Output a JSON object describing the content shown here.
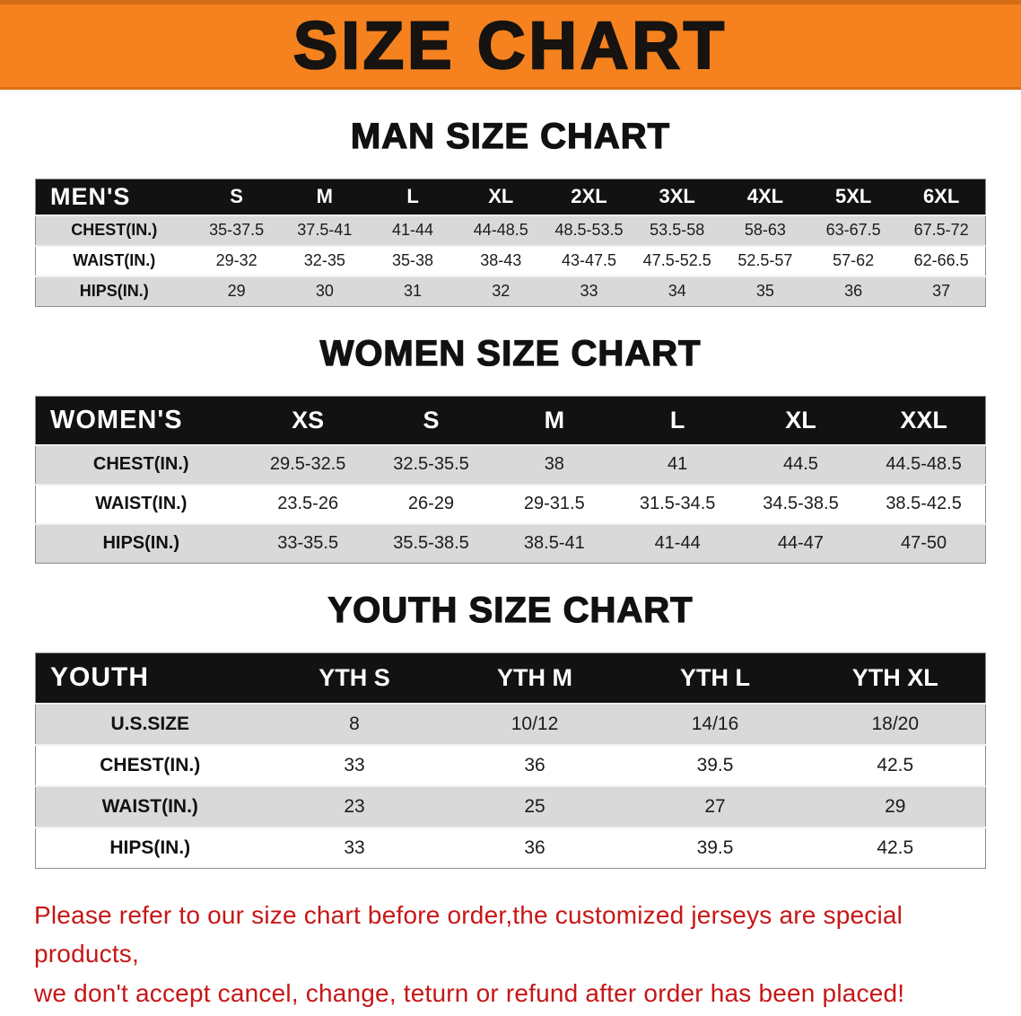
{
  "banner": {
    "title": "SIZE CHART"
  },
  "tables": {
    "men": {
      "heading": "MAN SIZE CHART",
      "corner": "MEN'S",
      "columns": [
        "S",
        "M",
        "L",
        "XL",
        "2XL",
        "3XL",
        "4XL",
        "5XL",
        "6XL"
      ],
      "rows": [
        {
          "label": "CHEST(IN.)",
          "values": [
            "35-37.5",
            "37.5-41",
            "41-44",
            "44-48.5",
            "48.5-53.5",
            "53.5-58",
            "58-63",
            "63-67.5",
            "67.5-72"
          ]
        },
        {
          "label": "WAIST(IN.)",
          "values": [
            "29-32",
            "32-35",
            "35-38",
            "38-43",
            "43-47.5",
            "47.5-52.5",
            "52.5-57",
            "57-62",
            "62-66.5"
          ]
        },
        {
          "label": "HIPS(IN.)",
          "values": [
            "29",
            "30",
            "31",
            "32",
            "33",
            "34",
            "35",
            "36",
            "37"
          ]
        }
      ]
    },
    "women": {
      "heading": "WOMEN SIZE CHART",
      "corner": "WOMEN'S",
      "columns": [
        "XS",
        "S",
        "M",
        "L",
        "XL",
        "XXL"
      ],
      "rows": [
        {
          "label": "CHEST(IN.)",
          "values": [
            "29.5-32.5",
            "32.5-35.5",
            "38",
            "41",
            "44.5",
            "44.5-48.5"
          ]
        },
        {
          "label": "WAIST(IN.)",
          "values": [
            "23.5-26",
            "26-29",
            "29-31.5",
            "31.5-34.5",
            "34.5-38.5",
            "38.5-42.5"
          ]
        },
        {
          "label": "HIPS(IN.)",
          "values": [
            "33-35.5",
            "35.5-38.5",
            "38.5-41",
            "41-44",
            "44-47",
            "47-50"
          ]
        }
      ]
    },
    "youth": {
      "heading": "YOUTH SIZE CHART",
      "corner": "YOUTH",
      "columns": [
        "YTH S",
        "YTH M",
        "YTH L",
        "YTH XL"
      ],
      "rows": [
        {
          "label": "U.S.SIZE",
          "values": [
            "8",
            "10/12",
            "14/16",
            "18/20"
          ]
        },
        {
          "label": "CHEST(IN.)",
          "values": [
            "33",
            "36",
            "39.5",
            "42.5"
          ]
        },
        {
          "label": "WAIST(IN.)",
          "values": [
            "23",
            "25",
            "27",
            "29"
          ]
        },
        {
          "label": "HIPS(IN.)",
          "values": [
            "33",
            "36",
            "39.5",
            "42.5"
          ]
        }
      ]
    }
  },
  "footer": {
    "line1": "Please refer to our size chart before order,the customized jerseys are special products,",
    "line2": "we don't accept cancel, change, teturn or refund after order has been placed!"
  },
  "colors": {
    "banner_bg": "#f5821f",
    "banner_text": "#161310",
    "table_header_bg": "#121212",
    "table_header_text": "#ffffff",
    "row_alt_bg": "#d9d9d9",
    "row_bg": "#ffffff",
    "footer_text": "#c61717"
  }
}
